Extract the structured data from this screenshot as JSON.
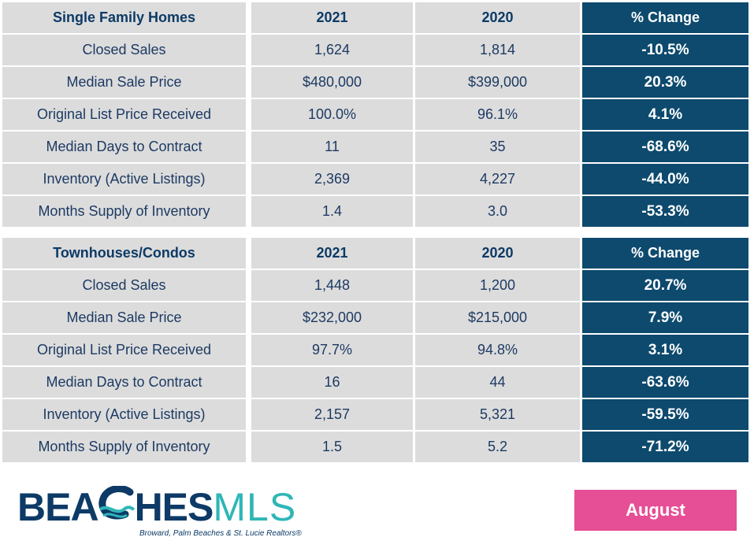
{
  "sections": [
    {
      "header": [
        "Single Family Homes",
        "2021",
        "2020",
        "% Change"
      ],
      "rows": [
        [
          "Closed Sales",
          "1,624",
          "1,814",
          "-10.5%"
        ],
        [
          "Median Sale Price",
          "$480,000",
          "$399,000",
          "20.3%"
        ],
        [
          "Original List Price Received",
          "100.0%",
          "96.1%",
          "4.1%"
        ],
        [
          "Median Days to Contract",
          "11",
          "35",
          "-68.6%"
        ],
        [
          "Inventory (Active Listings)",
          "2,369",
          "4,227",
          "-44.0%"
        ],
        [
          "Months Supply of Inventory",
          "1.4",
          "3.0",
          "-53.3%"
        ]
      ]
    },
    {
      "header": [
        "Townhouses/Condos",
        "2021",
        "2020",
        "% Change"
      ],
      "rows": [
        [
          "Closed Sales",
          "1,448",
          "1,200",
          "20.7%"
        ],
        [
          "Median Sale Price",
          "$232,000",
          "$215,000",
          "7.9%"
        ],
        [
          "Original List Price Received",
          "97.7%",
          "94.8%",
          "3.1%"
        ],
        [
          "Median Days to Contract",
          "16",
          "44",
          "-63.6%"
        ],
        [
          "Inventory (Active Listings)",
          "2,157",
          "5,321",
          "-59.5%"
        ],
        [
          "Months Supply of Inventory",
          "1.5",
          "5.2",
          "-71.2%"
        ]
      ]
    }
  ],
  "logo": {
    "part1": "BEA",
    "part2": "HES",
    "part3": "MLS",
    "tagline": "Broward, Palm Beaches & St. Lucie Realtors®"
  },
  "month_button": "August",
  "colors": {
    "header_text": "#0d3a66",
    "change_bg": "#0d4a6e",
    "cell_bg": "#dcdcdc",
    "month_button_bg": "#e64e95",
    "logo_teal": "#2fb6b6"
  }
}
